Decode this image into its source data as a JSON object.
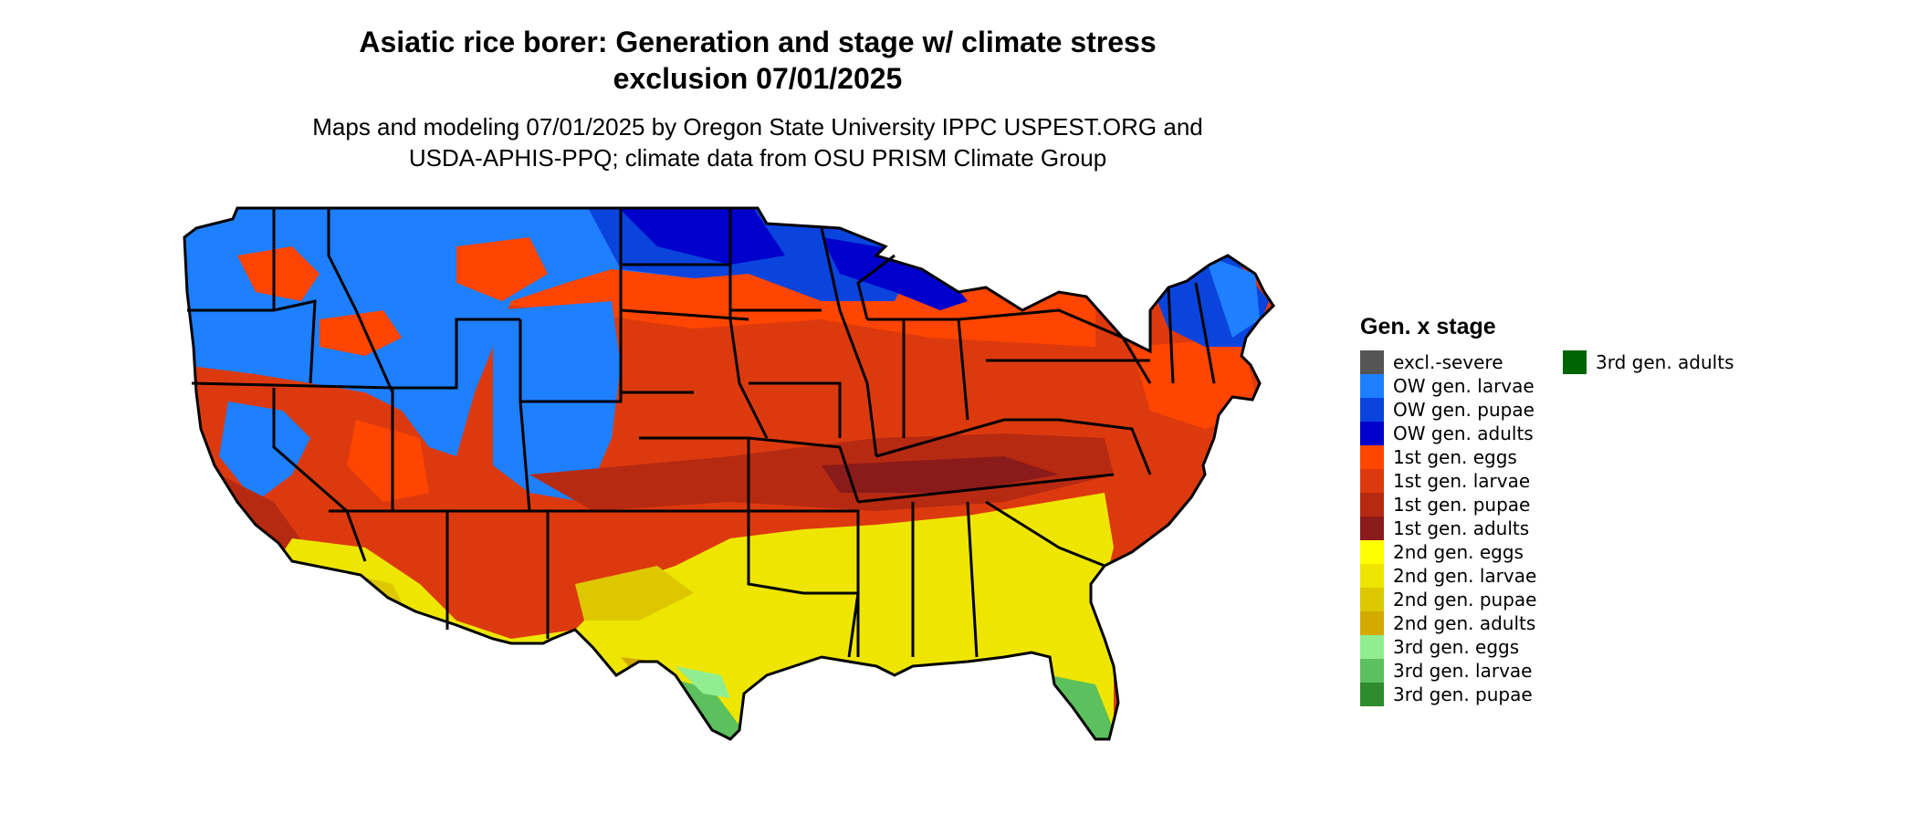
{
  "title_line1": "Asiatic rice borer: Generation and stage w/ climate stress",
  "title_line2": "exclusion 07/01/2025",
  "subtitle_line1": "Maps and modeling 07/01/2025 by Oregon State University IPPC USPEST.ORG and",
  "subtitle_line2": "USDA-APHIS-PPQ; climate data from OSU PRISM Climate Group",
  "legend": {
    "title": "Gen. x stage",
    "items": [
      {
        "label": "excl.-severe",
        "color": "#555555"
      },
      {
        "label": "OW gen. larvae",
        "color": "#1E7FFF"
      },
      {
        "label": "OW gen. pupae",
        "color": "#0A44DD"
      },
      {
        "label": "OW gen. adults",
        "color": "#0000CC"
      },
      {
        "label": "1st gen. eggs",
        "color": "#FF4500"
      },
      {
        "label": "1st gen. larvae",
        "color": "#DC3A0E"
      },
      {
        "label": "1st gen. pupae",
        "color": "#B72A12"
      },
      {
        "label": "1st gen. adults",
        "color": "#8B1A1A"
      },
      {
        "label": "2nd gen. eggs",
        "color": "#FFFF00"
      },
      {
        "label": "2nd gen. larvae",
        "color": "#EEE600"
      },
      {
        "label": "2nd gen. pupae",
        "color": "#DDC800"
      },
      {
        "label": "2nd gen. adults",
        "color": "#D4A900"
      },
      {
        "label": "3rd gen. eggs",
        "color": "#90EE90"
      },
      {
        "label": "3rd gen. larvae",
        "color": "#5CC05C"
      },
      {
        "label": "3rd gen. pupae",
        "color": "#2E8B2E"
      },
      {
        "label": "3rd gen. adults",
        "color": "#006400"
      }
    ]
  }
}
